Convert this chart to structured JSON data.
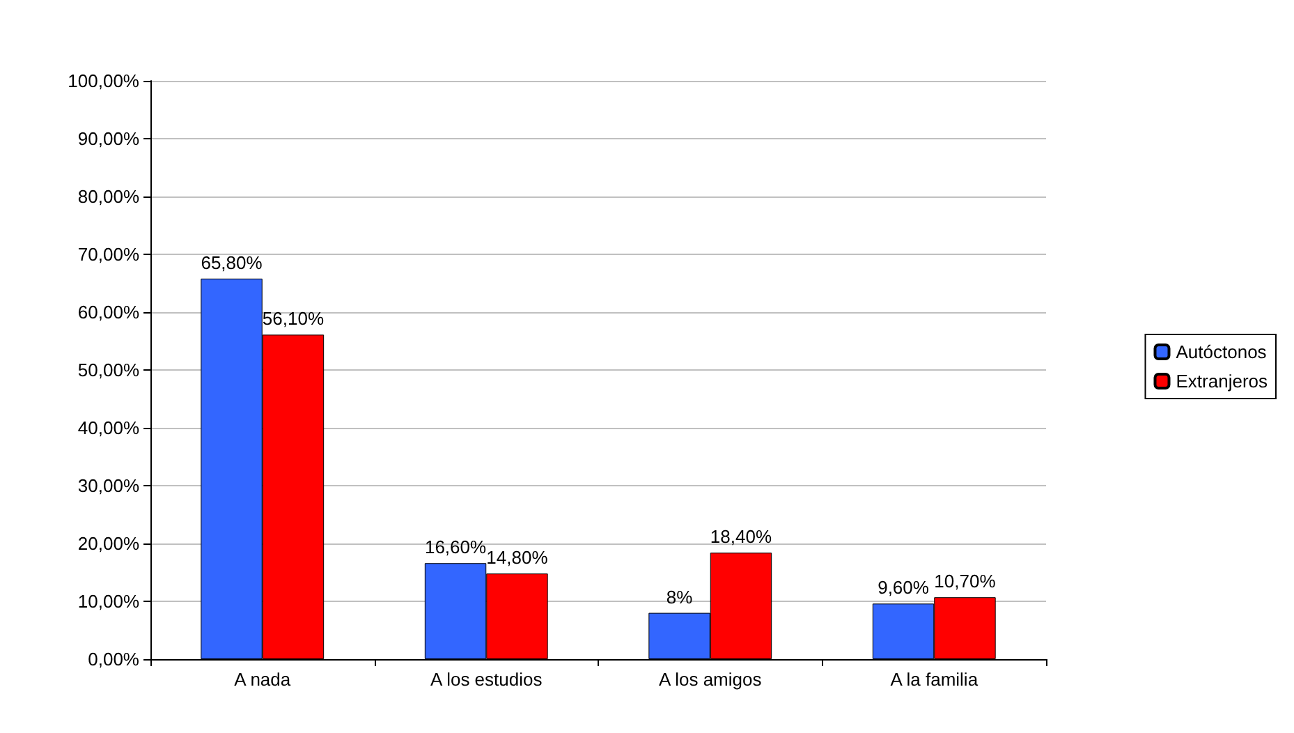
{
  "chart_data": {
    "type": "bar",
    "categories": [
      "A nada",
      "A los estudios",
      "A los amigos",
      "A la familia"
    ],
    "series": [
      {
        "name": "Autóctonos",
        "color": "#3366ff",
        "values": [
          65.8,
          16.6,
          8,
          9.6
        ],
        "value_labels": [
          "65,80%",
          "16,60%",
          "8%",
          "9,60%"
        ]
      },
      {
        "name": "Extranjeros",
        "color": "#ff0000",
        "values": [
          56.1,
          14.8,
          18.4,
          10.7
        ],
        "value_labels": [
          "56,10%",
          "14,80%",
          "18,40%",
          "10,70%"
        ]
      }
    ],
    "ylim": [
      0,
      100
    ],
    "yticks": [
      {
        "value": 0,
        "label": "0,00%"
      },
      {
        "value": 10,
        "label": "10,00%"
      },
      {
        "value": 20,
        "label": "20,00%"
      },
      {
        "value": 30,
        "label": "30,00%"
      },
      {
        "value": 40,
        "label": "40,00%"
      },
      {
        "value": 50,
        "label": "50,00%"
      },
      {
        "value": 60,
        "label": "60,00%"
      },
      {
        "value": 70,
        "label": "70,00%"
      },
      {
        "value": 80,
        "label": "80,00%"
      },
      {
        "value": 90,
        "label": "90,00%"
      },
      {
        "value": 100,
        "label": "100,00%"
      }
    ],
    "grid": "y",
    "legend": "right"
  }
}
